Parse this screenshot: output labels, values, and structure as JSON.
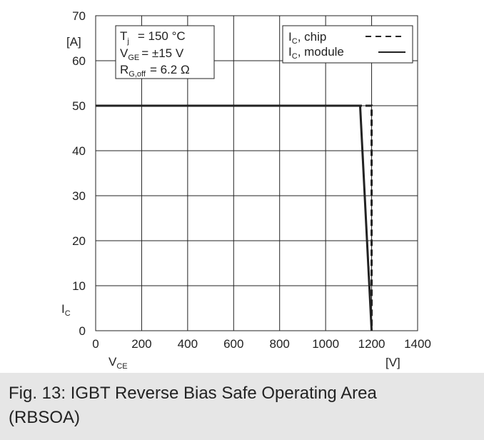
{
  "caption": {
    "line1": "Fig. 13: IGBT Reverse Bias Safe Operating Area",
    "line2": "(RBSOA)"
  },
  "chart_data": {
    "type": "line",
    "title": "",
    "xlabel": {
      "main": "V",
      "sub": "CE"
    },
    "ylabel": {
      "main": "I",
      "sub": "C"
    },
    "x_unit": "[V]",
    "y_unit": "[A]",
    "xlim": [
      0,
      1400
    ],
    "ylim": [
      0,
      70
    ],
    "x_ticks": [
      0,
      200,
      400,
      600,
      800,
      1000,
      1200,
      1400
    ],
    "y_ticks": [
      0,
      10,
      20,
      30,
      40,
      50,
      60,
      70
    ],
    "grid": true,
    "conditions": [
      {
        "main": "T",
        "sub": "j",
        "rest": "= 150 °C"
      },
      {
        "main": "V",
        "sub": "GE",
        "rest": "= ±15 V"
      },
      {
        "main": "R",
        "sub": "G,off",
        "rest": "= 6.2 Ω"
      }
    ],
    "legend_position": "top-right",
    "series": [
      {
        "name_main": "I",
        "name_sub": "C",
        "name_rest": ", chip",
        "style": "dashed",
        "x": [
          0,
          1200,
          1200
        ],
        "y": [
          50,
          50,
          0
        ]
      },
      {
        "name_main": "I",
        "name_sub": "C",
        "name_rest": ", module",
        "style": "solid",
        "x": [
          0,
          1150,
          1200
        ],
        "y": [
          50,
          50,
          0
        ]
      }
    ]
  }
}
